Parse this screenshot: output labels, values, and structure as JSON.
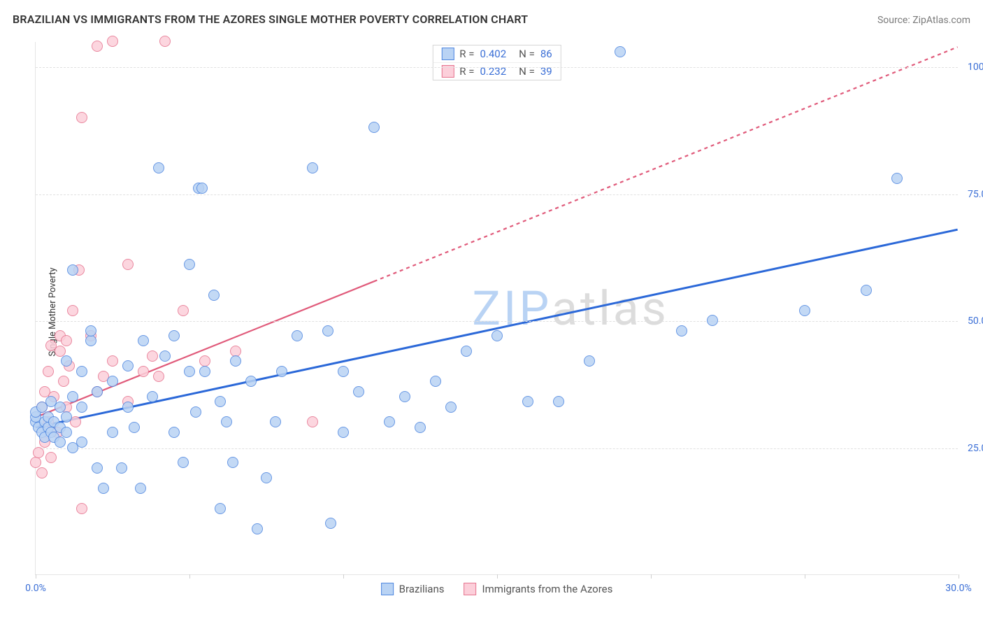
{
  "header": {
    "title": "BRAZILIAN VS IMMIGRANTS FROM THE AZORES SINGLE MOTHER POVERTY CORRELATION CHART",
    "source": "Source: ZipAtlas.com"
  },
  "chart": {
    "type": "scatter",
    "ylabel": "Single Mother Poverty",
    "background_color": "#ffffff",
    "grid_color": "#e0e0e0",
    "axis_color": "#e5e5e5",
    "label_fontsize": 13,
    "tick_fontsize": 14,
    "tick_color": "#3b6fd6",
    "xlim": [
      0,
      30
    ],
    "ylim": [
      0,
      105
    ],
    "xticks": [
      0,
      5,
      10,
      15,
      20,
      25,
      30
    ],
    "xtick_labels": {
      "0": "0.0%",
      "30": "30.0%"
    },
    "yticks": [
      25,
      50,
      75,
      100
    ],
    "ytick_labels": {
      "25": "25.0%",
      "50": "50.0%",
      "75": "75.0%",
      "100": "100.0%"
    },
    "marker_radius": 8,
    "marker_border_width": 1.4,
    "series": [
      {
        "id": "brazilians",
        "label": "Brazilians",
        "fill": "#b9d3f4",
        "stroke": "#4f87e0",
        "line_color": "#2b68d8",
        "line_width": 3,
        "line_dash": "none",
        "R": "0.402",
        "N": "86",
        "trend": {
          "x1": 0,
          "y1": 29,
          "x2": 30,
          "y2": 68
        },
        "points": [
          [
            0.0,
            30
          ],
          [
            0.0,
            31
          ],
          [
            0.0,
            32
          ],
          [
            0.1,
            29
          ],
          [
            0.2,
            28
          ],
          [
            0.2,
            33
          ],
          [
            0.3,
            27
          ],
          [
            0.3,
            30
          ],
          [
            0.4,
            31
          ],
          [
            0.4,
            29
          ],
          [
            0.5,
            28
          ],
          [
            0.5,
            34
          ],
          [
            0.6,
            30
          ],
          [
            0.6,
            27
          ],
          [
            0.8,
            33
          ],
          [
            0.8,
            29
          ],
          [
            0.8,
            26
          ],
          [
            1.0,
            42
          ],
          [
            1.0,
            31
          ],
          [
            1.0,
            28
          ],
          [
            1.2,
            35
          ],
          [
            1.2,
            25
          ],
          [
            1.2,
            60
          ],
          [
            1.5,
            26
          ],
          [
            1.5,
            33
          ],
          [
            1.5,
            40
          ],
          [
            1.8,
            46
          ],
          [
            1.8,
            48
          ],
          [
            2.0,
            21
          ],
          [
            2.0,
            36
          ],
          [
            2.2,
            17
          ],
          [
            2.5,
            28
          ],
          [
            2.5,
            38
          ],
          [
            2.8,
            21
          ],
          [
            3.0,
            33
          ],
          [
            3.0,
            41
          ],
          [
            3.2,
            29
          ],
          [
            3.4,
            17
          ],
          [
            3.5,
            46
          ],
          [
            3.8,
            35
          ],
          [
            4.0,
            80
          ],
          [
            4.2,
            43
          ],
          [
            4.5,
            28
          ],
          [
            4.5,
            47
          ],
          [
            4.8,
            22
          ],
          [
            5.0,
            40
          ],
          [
            5.0,
            61
          ],
          [
            5.2,
            32
          ],
          [
            5.3,
            76
          ],
          [
            5.4,
            76
          ],
          [
            5.5,
            40
          ],
          [
            5.8,
            55
          ],
          [
            6.0,
            13
          ],
          [
            6.0,
            34
          ],
          [
            6.2,
            30
          ],
          [
            6.4,
            22
          ],
          [
            6.5,
            42
          ],
          [
            7.0,
            38
          ],
          [
            7.2,
            9
          ],
          [
            7.5,
            19
          ],
          [
            7.8,
            30
          ],
          [
            8.0,
            40
          ],
          [
            8.5,
            47
          ],
          [
            9.0,
            80
          ],
          [
            9.5,
            48
          ],
          [
            9.6,
            10
          ],
          [
            10.0,
            28
          ],
          [
            10.0,
            40
          ],
          [
            10.5,
            36
          ],
          [
            11.0,
            88
          ],
          [
            11.5,
            30
          ],
          [
            12.0,
            35
          ],
          [
            12.5,
            29
          ],
          [
            13.0,
            38
          ],
          [
            13.5,
            33
          ],
          [
            14.0,
            44
          ],
          [
            15.0,
            47
          ],
          [
            16.0,
            34
          ],
          [
            17.0,
            34
          ],
          [
            18.0,
            42
          ],
          [
            19.0,
            103
          ],
          [
            21.0,
            48
          ],
          [
            22.0,
            50
          ],
          [
            25.0,
            52
          ],
          [
            27.0,
            56
          ],
          [
            28.0,
            78
          ]
        ]
      },
      {
        "id": "azores",
        "label": "Immigrants from the Azores",
        "fill": "#fccfda",
        "stroke": "#e6748f",
        "line_color": "#e05a7a",
        "line_width": 2.2,
        "line_dash_solid_until_x": 11,
        "line_dash": "5,5",
        "R": "0.232",
        "N": "39",
        "trend": {
          "x1": 0,
          "y1": 31,
          "x2": 30,
          "y2": 104
        },
        "points": [
          [
            0.0,
            22
          ],
          [
            0.1,
            24
          ],
          [
            0.2,
            20
          ],
          [
            0.2,
            33
          ],
          [
            0.3,
            26
          ],
          [
            0.3,
            36
          ],
          [
            0.4,
            30
          ],
          [
            0.4,
            40
          ],
          [
            0.5,
            23
          ],
          [
            0.5,
            45
          ],
          [
            0.6,
            35
          ],
          [
            0.7,
            28
          ],
          [
            0.8,
            44
          ],
          [
            0.8,
            47
          ],
          [
            0.9,
            38
          ],
          [
            1.0,
            33
          ],
          [
            1.0,
            46
          ],
          [
            1.1,
            41
          ],
          [
            1.2,
            52
          ],
          [
            1.3,
            30
          ],
          [
            1.4,
            60
          ],
          [
            1.5,
            13
          ],
          [
            1.5,
            90
          ],
          [
            1.8,
            47
          ],
          [
            2.0,
            36
          ],
          [
            2.0,
            104
          ],
          [
            2.2,
            39
          ],
          [
            2.5,
            42
          ],
          [
            2.5,
            105
          ],
          [
            3.0,
            34
          ],
          [
            3.0,
            61
          ],
          [
            3.5,
            40
          ],
          [
            3.8,
            43
          ],
          [
            4.0,
            39
          ],
          [
            4.2,
            105
          ],
          [
            4.8,
            52
          ],
          [
            5.5,
            42
          ],
          [
            6.5,
            44
          ],
          [
            9.0,
            30
          ]
        ]
      }
    ],
    "watermark": {
      "text1": "ZIP",
      "color1": "#b9d3f4",
      "text2": "atlas",
      "color2": "#dcdcdc",
      "fontsize": 68
    }
  }
}
